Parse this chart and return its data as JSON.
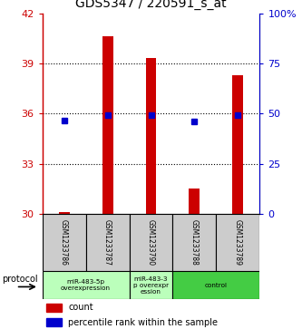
{
  "title": "GDS5347 / 220591_s_at",
  "samples": [
    "GSM1233786",
    "GSM1233787",
    "GSM1233790",
    "GSM1233788",
    "GSM1233789"
  ],
  "bar_values": [
    30.1,
    40.6,
    39.3,
    31.5,
    38.3
  ],
  "bar_base": 30.0,
  "percentile_values": [
    35.6,
    35.9,
    35.9,
    35.5,
    35.9
  ],
  "ylim_left": [
    30,
    42
  ],
  "ylim_right": [
    0,
    100
  ],
  "yticks_left": [
    30,
    33,
    36,
    39,
    42
  ],
  "yticks_right": [
    0,
    25,
    50,
    75,
    100
  ],
  "ytick_labels_right": [
    "0",
    "25",
    "50",
    "75",
    "100%"
  ],
  "bar_color": "#cc0000",
  "percentile_color": "#0000cc",
  "bar_width": 0.25,
  "protocols": [
    {
      "label": "miR-483-5p\noverexpression",
      "start": 0,
      "end": 1,
      "color": "#bbffbb"
    },
    {
      "label": "miR-483-3\np overexpr\nession",
      "start": 2,
      "end": 2,
      "color": "#bbffbb"
    },
    {
      "label": "control",
      "start": 3,
      "end": 4,
      "color": "#44cc44"
    }
  ],
  "protocol_label": "protocol",
  "legend_count_label": "count",
  "legend_percentile_label": "percentile rank within the sample",
  "left_tick_color": "#cc0000",
  "right_tick_color": "#0000cc",
  "sample_box_color": "#cccccc",
  "grid_yticks": [
    33,
    36,
    39
  ]
}
